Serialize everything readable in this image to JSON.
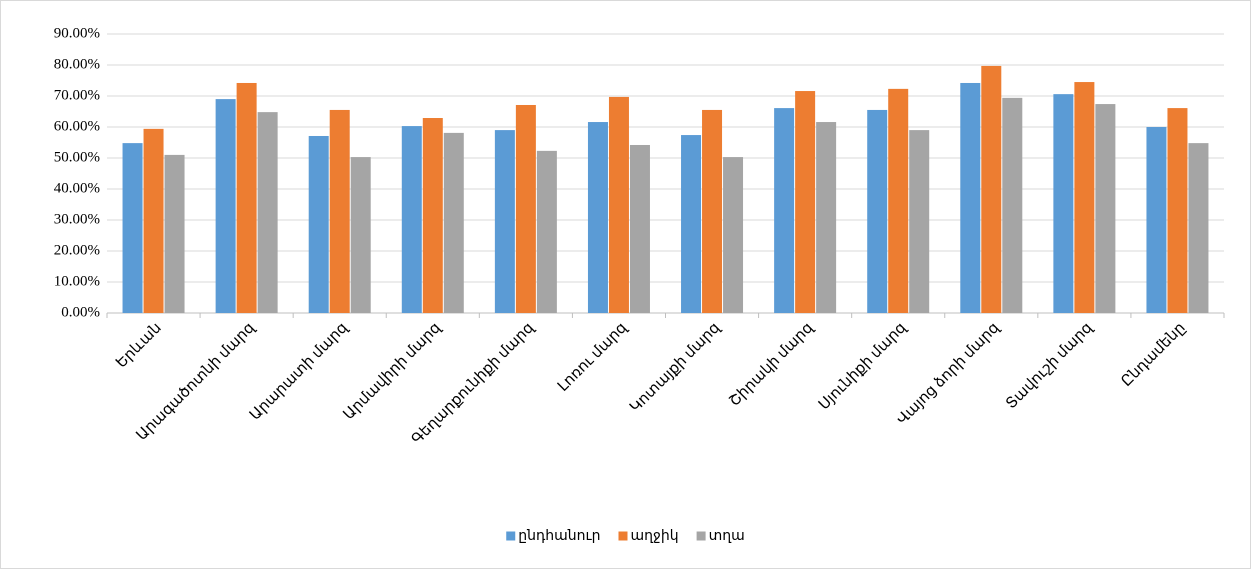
{
  "chart_data": {
    "type": "bar",
    "categories": [
      "Երևան",
      "Արագածոտնի մարզ",
      "Արարատի մարզ",
      "Արմավիրի մարզ",
      "Գեղարքունիքի մարզ",
      "Լոռու մարզ",
      "Կոտայքի մարզ",
      "Շիրակի մարզ",
      "Սյունիքի մարզ",
      "Վայոց ձորի մարզ",
      "Տավուշի մարզ",
      "Ընդամենը"
    ],
    "series": [
      {
        "name": "ընդհանուր",
        "color": "#5b9bd5",
        "values": [
          54.8,
          69.0,
          57.1,
          60.3,
          59.0,
          61.6,
          57.4,
          66.1,
          65.5,
          74.2,
          70.6,
          60.0
        ]
      },
      {
        "name": "աղջիկ",
        "color": "#ed7d31",
        "values": [
          59.4,
          74.2,
          65.5,
          62.9,
          67.1,
          69.7,
          65.5,
          71.6,
          72.3,
          79.7,
          74.5,
          66.1
        ]
      },
      {
        "name": "տղա",
        "color": "#a5a5a5",
        "values": [
          51.0,
          64.8,
          50.3,
          58.1,
          52.3,
          54.2,
          50.3,
          61.6,
          59.0,
          69.4,
          67.4,
          54.8
        ]
      }
    ],
    "ylim": [
      0,
      90
    ],
    "yticks": [
      {
        "value": 0,
        "label": "0.00%"
      },
      {
        "value": 10,
        "label": "10.00%"
      },
      {
        "value": 20,
        "label": "20.00%"
      },
      {
        "value": 30,
        "label": "30.00%"
      },
      {
        "value": 40,
        "label": "40.00%"
      },
      {
        "value": 50,
        "label": "50.00%"
      },
      {
        "value": 60,
        "label": "60.00%"
      },
      {
        "value": 70,
        "label": "70.00%"
      },
      {
        "value": 80,
        "label": "80.00%"
      },
      {
        "value": 90,
        "label": "90.00%"
      }
    ],
    "grid": true,
    "legend": "bottom"
  }
}
